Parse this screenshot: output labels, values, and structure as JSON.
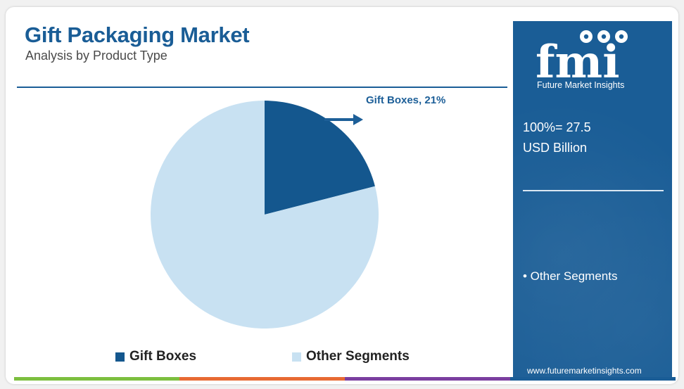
{
  "header": {
    "title": "Gift Packaging Market",
    "subtitle": "Analysis by  Product Type"
  },
  "chart_data": {
    "type": "pie",
    "title": "Gift Packaging Market",
    "subtitle": "Analysis by  Product Type",
    "categories": [
      "Gift Boxes",
      "Other Segments"
    ],
    "values": [
      21,
      79
    ],
    "unit": "%",
    "colors": [
      "#14578e",
      "#c8e1f2"
    ],
    "annotation": "Gift Boxes, 21%",
    "legend": {
      "placement": "bottom",
      "entries": [
        "Gift Boxes",
        "Other Segments"
      ]
    }
  },
  "sidebar": {
    "logo_text": "fmi",
    "brand_name": "Future Market Insights",
    "total_line1": "100%= 27.5",
    "total_line2": "USD Billion",
    "bullet": "• Other Segments",
    "url": "www.futuremarketinsights.com"
  },
  "colors": {
    "brand_blue": "#1a5d96",
    "gift_boxes": "#14578e",
    "other_segments": "#c8e1f2",
    "bar_green": "#7cbf3f",
    "bar_orange": "#e76a33",
    "bar_purple": "#7b3fa0"
  }
}
